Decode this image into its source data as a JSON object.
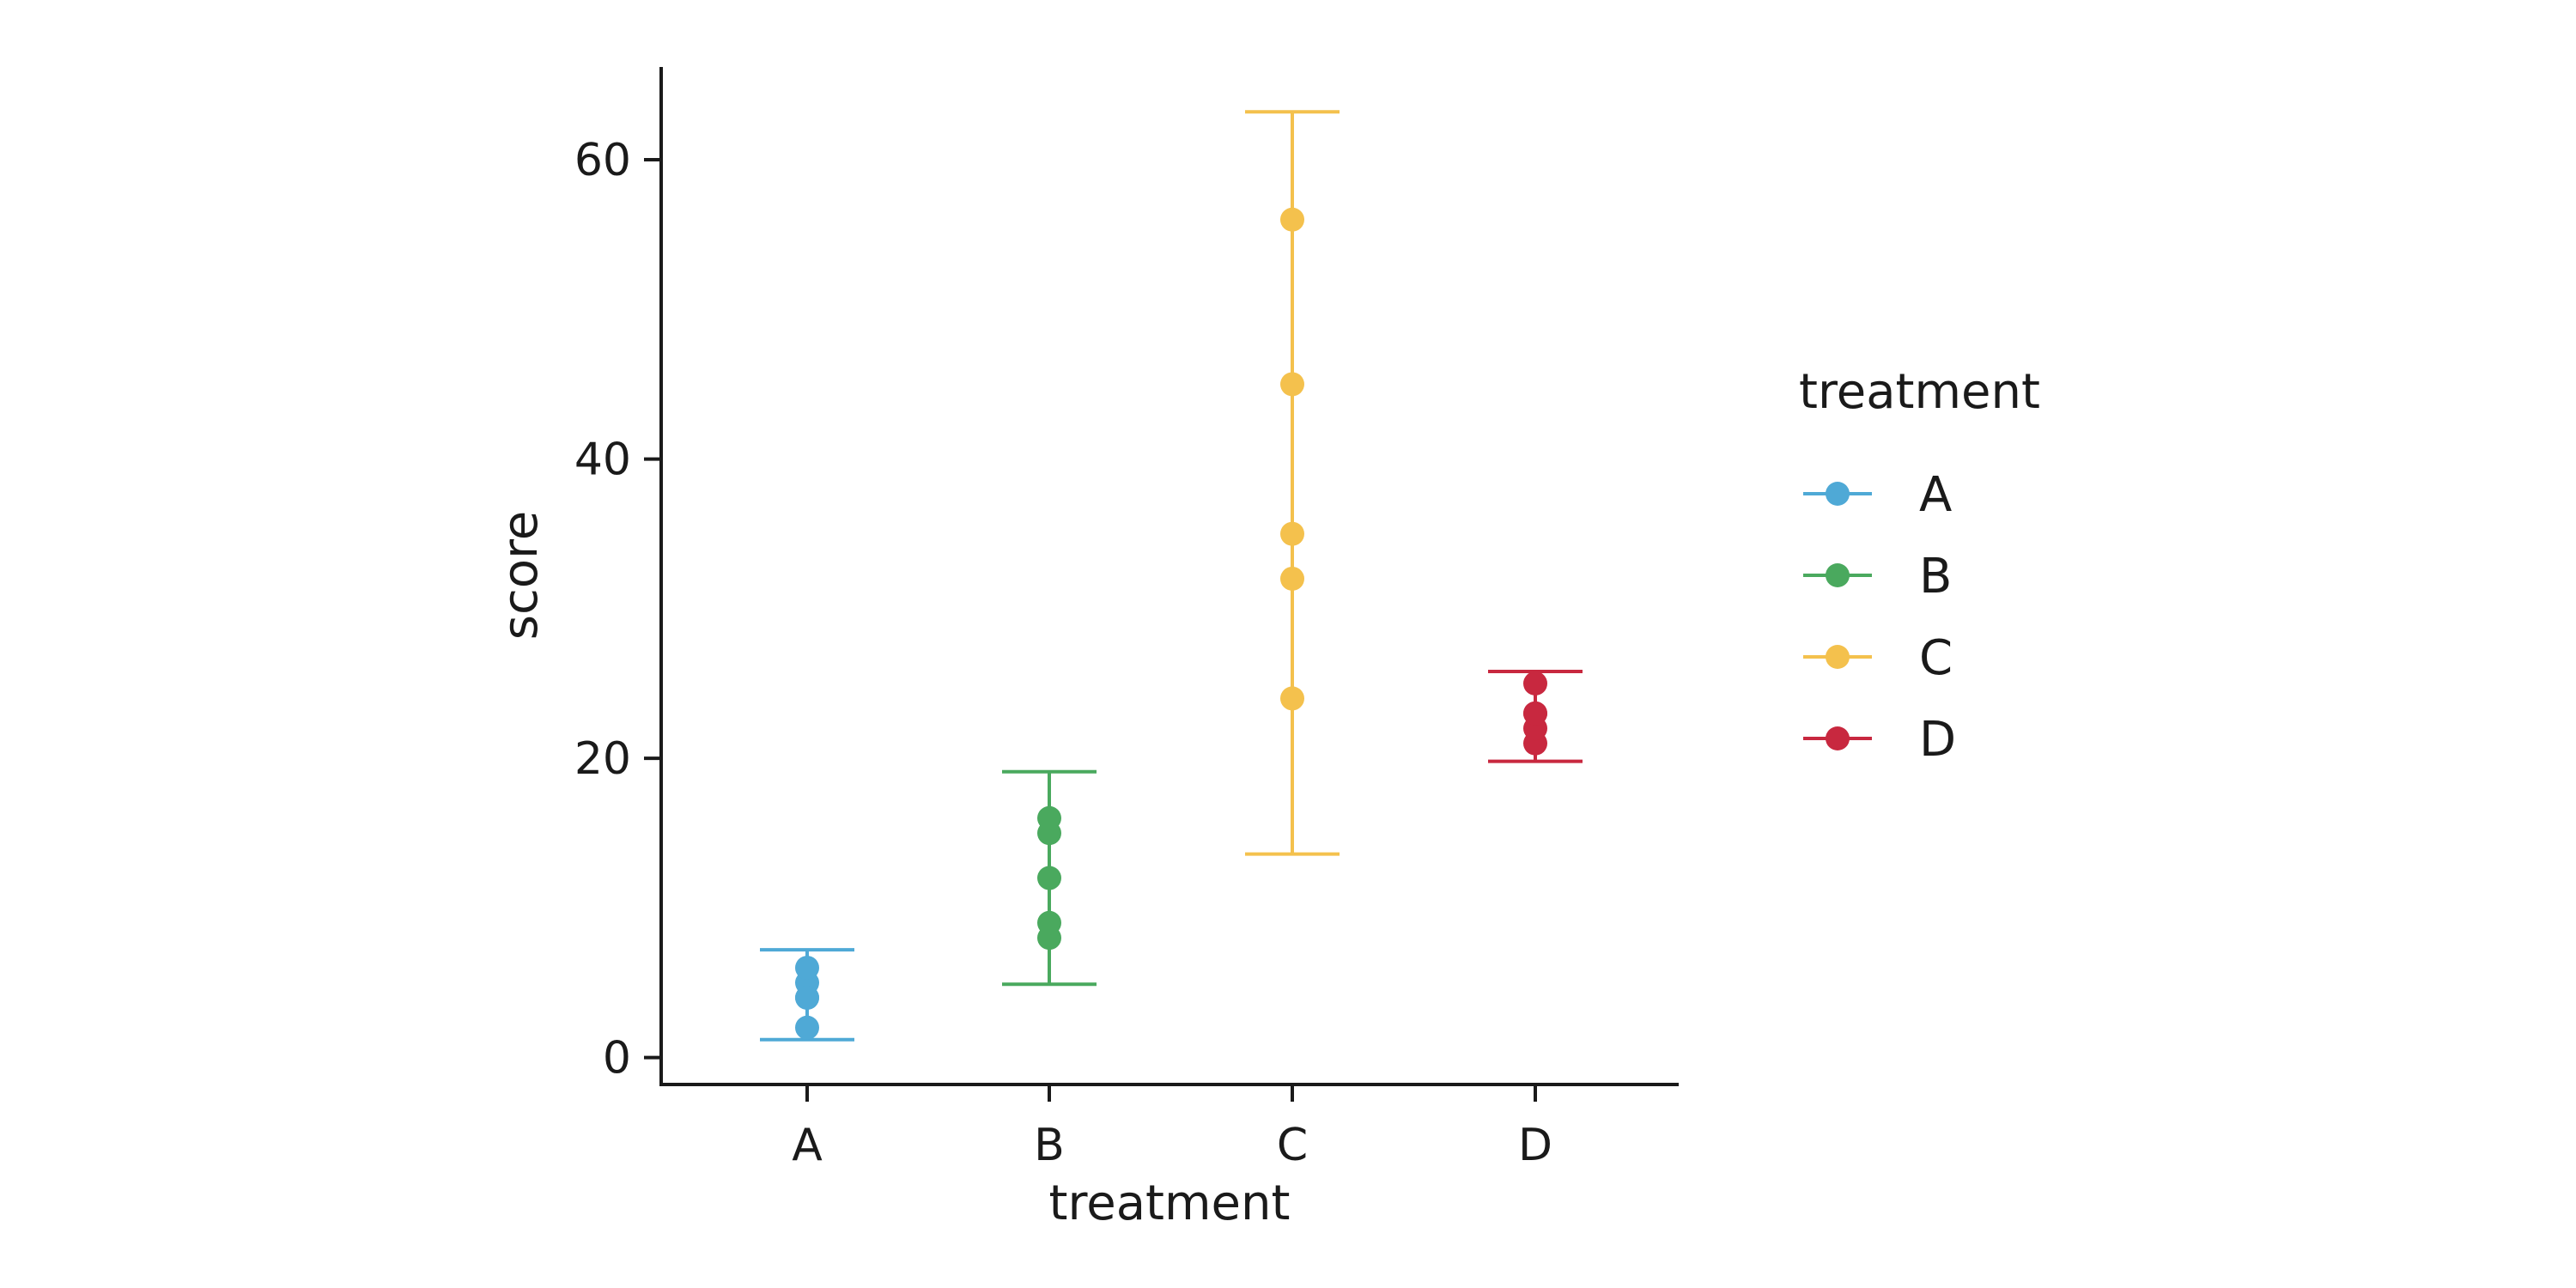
{
  "chart_data": {
    "type": "scatter",
    "xlabel": "treatment",
    "ylabel": "score",
    "categories": [
      "A",
      "B",
      "C",
      "D"
    ],
    "ylim": [
      -1.8,
      66.2
    ],
    "yticks": [
      0,
      20,
      40,
      60
    ],
    "grid": false,
    "legend": {
      "title": "treatment",
      "placement": "right"
    },
    "series": [
      {
        "name": "A",
        "color": "#4fa9d6",
        "points": [
          2,
          4,
          5,
          6,
          4
        ],
        "error_bar": [
          1.2,
          7.2
        ]
      },
      {
        "name": "B",
        "color": "#4aa95e",
        "points": [
          8,
          9,
          12,
          15,
          16
        ],
        "error_bar": [
          4.9,
          19.1
        ]
      },
      {
        "name": "C",
        "color": "#f4c14d",
        "points": [
          24,
          32,
          35,
          45,
          56
        ],
        "error_bar": [
          13.6,
          63.2
        ]
      },
      {
        "name": "D",
        "color": "#c8283f",
        "points": [
          21,
          22,
          23,
          25,
          23
        ],
        "error_bar": [
          19.8,
          25.8
        ]
      }
    ]
  }
}
